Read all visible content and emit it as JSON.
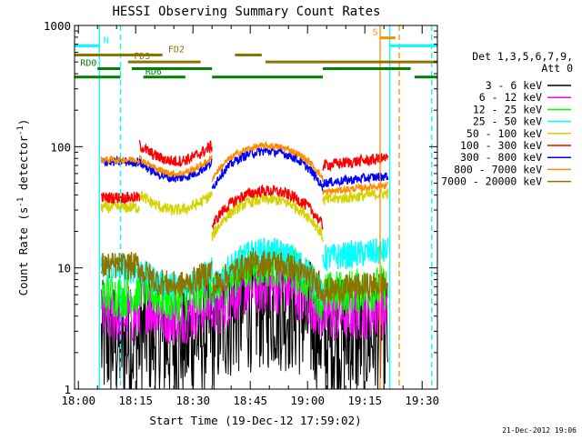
{
  "chart_data": {
    "type": "line",
    "title": "HESSI Observing Summary Count Rates",
    "xlabel": "Start Time (19-Dec-12 17:59:02)",
    "ylabel_parts": [
      "Count Rate (s",
      "-1",
      " detector",
      "-1",
      ")"
    ],
    "ylabel": "Count Rate (s-1 detector-1)",
    "y_scale": "log",
    "ylim": [
      1,
      1000
    ],
    "xlim_minutes": [
      -1,
      94
    ],
    "x_ticks": [
      {
        "label": "18:00",
        "m": 0
      },
      {
        "label": "18:15",
        "m": 15
      },
      {
        "label": "18:30",
        "m": 30
      },
      {
        "label": "18:45",
        "m": 45
      },
      {
        "label": "19:00",
        "m": 60
      },
      {
        "label": "19:15",
        "m": 75
      },
      {
        "label": "19:30",
        "m": 90
      }
    ],
    "y_ticks": [
      {
        "label": "1",
        "v": 1
      },
      {
        "label": "10",
        "v": 10
      },
      {
        "label": "100",
        "v": 100
      },
      {
        "label": "1000",
        "v": 1000
      }
    ],
    "legend": {
      "header": [
        "Det 1,3,5,6,7,9,",
        "Att 0"
      ],
      "placement": "right"
    },
    "segments": [
      [
        6,
        16
      ],
      [
        16,
        35
      ],
      [
        35,
        64
      ],
      [
        64,
        81
      ]
    ],
    "series": [
      {
        "name": "3 - 6 keV",
        "color": "#000000",
        "base": 2.4,
        "noise": 0.55,
        "seg_mult": [
          1.0,
          1.0,
          1.2,
          1.0
        ],
        "bump": 0.4
      },
      {
        "name": "6 - 12 keV",
        "color": "#ff00ff",
        "base": 4.0,
        "noise": 0.25,
        "seg_mult": [
          1.0,
          1.0,
          1.0,
          1.0
        ],
        "bump": 0.5
      },
      {
        "name": "12 - 25 keV",
        "color": "#00ff00",
        "base": 6.0,
        "noise": 0.2,
        "seg_mult": [
          1.0,
          0.9,
          0.9,
          1.0
        ],
        "bump": 0.6
      },
      {
        "name": "25 - 50 keV",
        "color": "#00ffff",
        "base": 7.5,
        "noise": 0.12,
        "seg_mult": [
          1.3,
          0.95,
          0.75,
          1.6
        ],
        "bump": 0.9
      },
      {
        "name": "50 - 100 keV",
        "color": "#d4d400",
        "base": 30,
        "noise": 0.05,
        "seg_mult": [
          1.05,
          1.0,
          0.6,
          1.2
        ],
        "bump": 0.65
      },
      {
        "name": "100 - 300 keV",
        "color": "#ff0000",
        "base": 40,
        "noise": 0.05,
        "seg_mult": [
          0.95,
          1.9,
          0.55,
          1.75
        ],
        "bump": 0.6
      },
      {
        "name": "300 - 800 keV",
        "color": "#0000ff",
        "base": 50,
        "noise": 0.04,
        "seg_mult": [
          1.5,
          1.1,
          0.9,
          1.0
        ],
        "bump": 0.65
      },
      {
        "name": "800 - 7000 keV",
        "color": "#ff8c00",
        "base": 60,
        "noise": 0.03,
        "seg_mult": [
          1.3,
          1.0,
          0.9,
          0.7
        ],
        "bump": 0.55
      },
      {
        "name": "7000 - 20000 keV",
        "color": "#8b7500",
        "base": 8.0,
        "noise": 0.12,
        "seg_mult": [
          1.3,
          0.9,
          0.8,
          0.8
        ],
        "bump": 0.45
      }
    ],
    "flag_bars": [
      {
        "label": "N",
        "color": "#00ffff",
        "v": 680,
        "spans": [
          [
            -1,
            5.5
          ],
          [
            81.5,
            94
          ]
        ],
        "label_m": 6.5
      },
      {
        "label": "FD2",
        "color": "#8b7500",
        "v": 570,
        "spans": [
          [
            -1,
            22
          ],
          [
            41,
            48
          ]
        ],
        "label_m": 23.5
      },
      {
        "label": "S",
        "color": "#ff8c00",
        "v": 790,
        "spans": [
          [
            79,
            83
          ]
        ],
        "label_m": 77
      },
      {
        "label": "FD3",
        "color": "#8b7500",
        "v": 500,
        "spans": [
          [
            13,
            32
          ],
          [
            49,
            94
          ]
        ],
        "label_m": 14.5
      },
      {
        "label": "RD0",
        "color": "#008000",
        "v": 440,
        "spans": [
          [
            5,
            11
          ],
          [
            14,
            35
          ],
          [
            64,
            87
          ]
        ],
        "label_m": 0.5
      },
      {
        "label": "RD6",
        "color": "#008000",
        "v": 375,
        "spans": [
          [
            -1,
            11
          ],
          [
            17,
            28
          ],
          [
            35,
            64
          ],
          [
            88,
            94
          ]
        ],
        "label_m": 17.5
      }
    ],
    "vlines": [
      {
        "m": 5.5,
        "color": "#00ffff",
        "style": "solid"
      },
      {
        "m": 11,
        "color": "#00ffff",
        "style": "dashed"
      },
      {
        "m": 79,
        "color": "#ff8c00",
        "style": "solid"
      },
      {
        "m": 81.5,
        "color": "#00ffff",
        "style": "solid"
      },
      {
        "m": 84,
        "color": "#ff8c00",
        "style": "dashed"
      },
      {
        "m": 92.5,
        "color": "#00ffff",
        "style": "dashed"
      }
    ],
    "grid": false,
    "timestamp": "21-Dec-2012 19:06"
  }
}
